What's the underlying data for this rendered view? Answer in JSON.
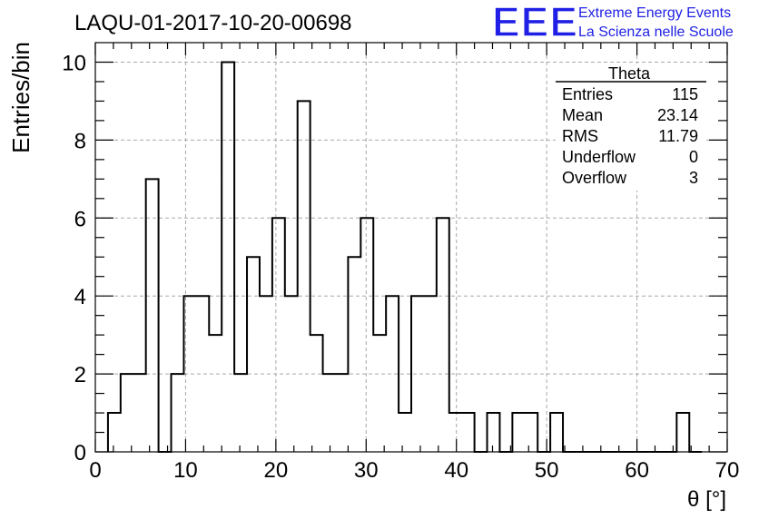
{
  "header": {
    "run_title": "LAQU-01-2017-10-20-00698",
    "logo_text": "EEE",
    "project_line1": "Extreme Energy Events",
    "project_line2": "La Scienza nelle Scuole",
    "brand_color": "#1f1fe6"
  },
  "stats_box": {
    "title": "Theta",
    "rows": [
      {
        "label": "Entries",
        "value": "115"
      },
      {
        "label": "Mean",
        "value": "23.14"
      },
      {
        "label": "RMS",
        "value": "11.79"
      },
      {
        "label": "Underflow",
        "value": "0"
      },
      {
        "label": "Overflow",
        "value": "3"
      }
    ]
  },
  "chart_data": {
    "type": "bar",
    "style": "step-histogram",
    "title": "LAQU-01-2017-10-20-00698",
    "xlabel": "θ [°]",
    "ylabel": "Entries/bin",
    "xlim": [
      0,
      70
    ],
    "ylim": [
      0,
      10.5
    ],
    "bin_width": 1.4,
    "x_ticks": [
      0,
      10,
      20,
      30,
      40,
      50,
      60,
      70
    ],
    "y_ticks": [
      0,
      2,
      4,
      6,
      8,
      10
    ],
    "grid": true,
    "bin_low_edges": [
      1.4,
      2.8,
      4.2,
      5.6,
      7.0,
      8.4,
      9.8,
      11.2,
      12.6,
      14.0,
      15.4,
      16.8,
      18.2,
      19.6,
      21.0,
      22.4,
      23.8,
      25.2,
      26.6,
      28.0,
      29.4,
      30.8,
      32.2,
      33.6,
      35.0,
      36.4,
      37.8,
      39.2,
      40.6,
      42.0,
      43.4,
      44.8,
      46.2,
      47.6,
      49.0,
      50.4,
      51.8,
      53.2,
      54.6,
      56.0,
      57.4,
      58.8,
      60.2,
      61.6,
      63.0,
      64.4,
      65.8
    ],
    "values": [
      1,
      2,
      2,
      7,
      0,
      2,
      4,
      4,
      3,
      10,
      2,
      5,
      4,
      6,
      4,
      9,
      3,
      2,
      2,
      5,
      6,
      3,
      4,
      1,
      4,
      4,
      6,
      1,
      1,
      0,
      1,
      0,
      1,
      1,
      0,
      1,
      0,
      0,
      0,
      0,
      0,
      0,
      0,
      0,
      0,
      1,
      0
    ]
  }
}
